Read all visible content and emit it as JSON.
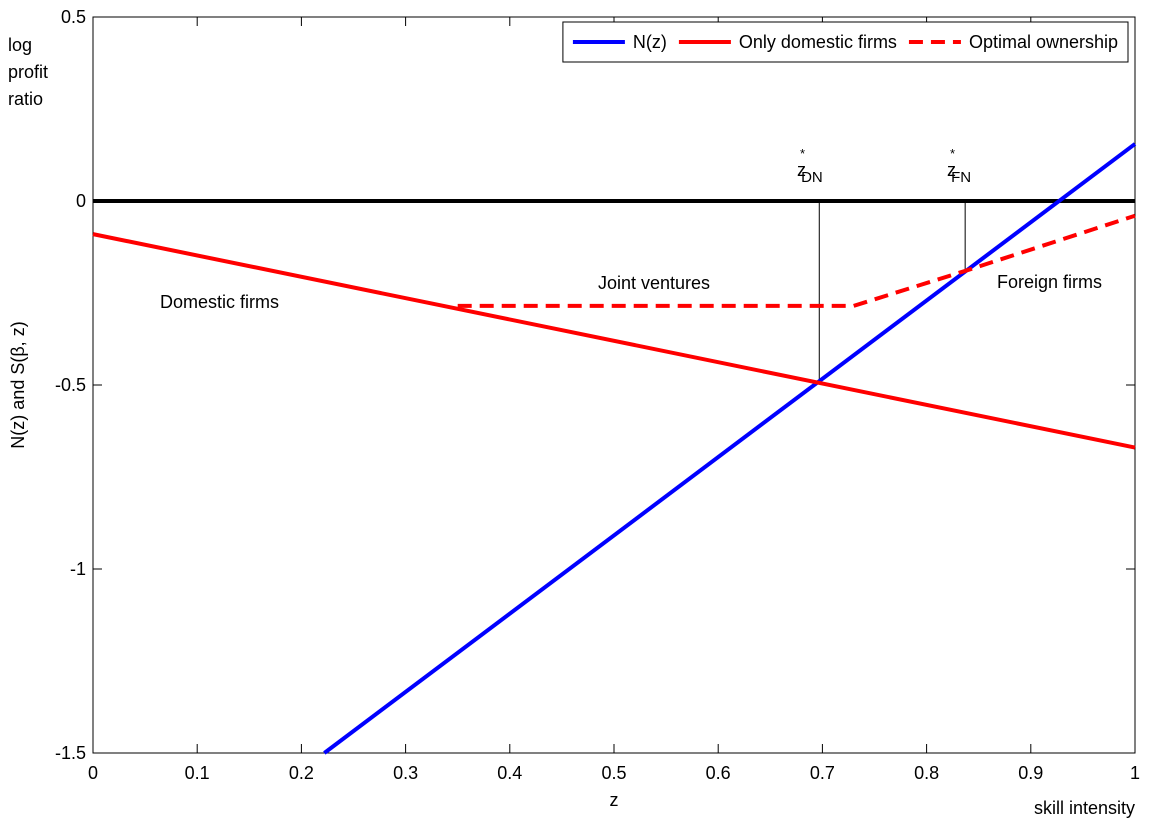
{
  "chart_data": {
    "type": "line",
    "y_label": "N(z) and S(β, z)",
    "x_label": "z",
    "corner_label": [
      "log",
      "profit",
      "ratio"
    ],
    "x_note": "skill intensity",
    "series": [
      {
        "name": "N(z)",
        "color": "#0000ff",
        "dash": false,
        "x": [
          0.222,
          1
        ],
        "values": [
          -1.5,
          0.155
        ]
      },
      {
        "name": "Only domestic firms",
        "color": "#ff0000",
        "dash": false,
        "x": [
          0,
          1
        ],
        "values": [
          -0.09,
          -0.67
        ]
      },
      {
        "name": "Optimal ownership",
        "color": "#ff0000",
        "dash": true,
        "x": [
          0.35,
          0.73,
          0.837,
          1
        ],
        "values": [
          -0.285,
          -0.285,
          -0.19,
          -0.04
        ]
      }
    ],
    "hline": 0,
    "vlines": [
      {
        "x": 0.697,
        "y": [
          0,
          -0.49
        ]
      },
      {
        "x": 0.837,
        "y": [
          0,
          -0.19
        ]
      }
    ],
    "markers": [
      {
        "base": "z",
        "sup": "*",
        "sub": "DN"
      },
      {
        "base": "z",
        "sup": "*",
        "sub": "FN"
      }
    ],
    "annotations": [
      "Domestic firms",
      "Joint ventures",
      "Foreign firms"
    ],
    "xlim": [
      0,
      1
    ],
    "xticks": [
      0,
      0.1,
      0.2,
      0.3,
      0.4,
      0.5,
      0.6,
      0.7,
      0.8,
      0.9,
      1
    ],
    "ylim": [
      -1.5,
      0.5
    ],
    "yticks": [
      -1.5,
      -1,
      -0.5,
      0,
      0.5
    ],
    "legend": "top-right",
    "grid": false
  }
}
